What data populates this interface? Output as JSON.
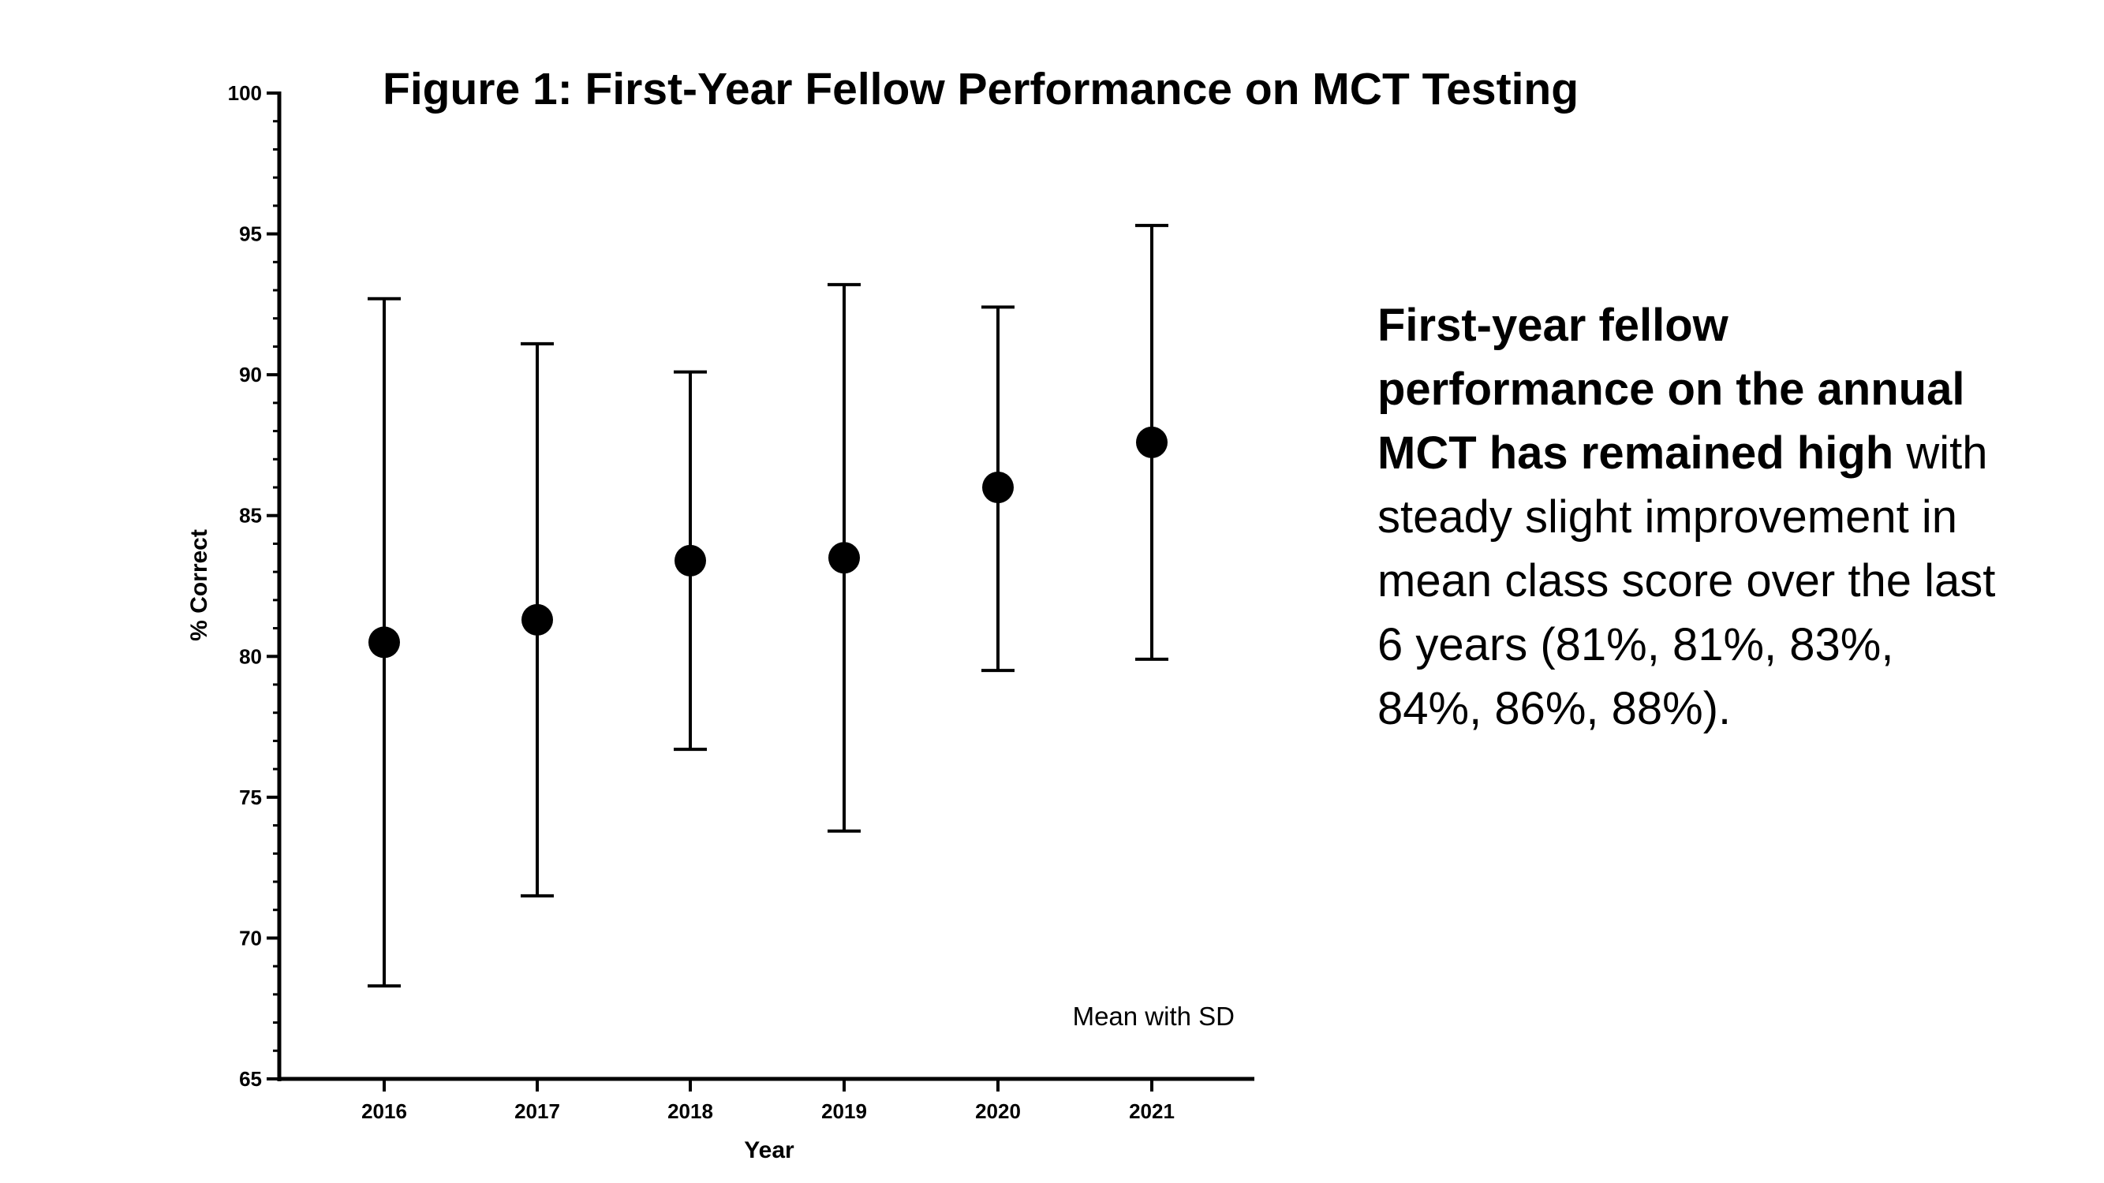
{
  "chart_data": {
    "type": "scatter",
    "title": "Figure 1:  First-Year Fellow Performance on MCT Testing",
    "xlabel": "Year",
    "ylabel": "% Correct",
    "categories": [
      "2016",
      "2017",
      "2018",
      "2019",
      "2020",
      "2021"
    ],
    "series": [
      {
        "mean": [
          80.5,
          81.3,
          83.4,
          83.5,
          86.0,
          87.6
        ],
        "sd_low": [
          68.3,
          71.5,
          76.7,
          73.8,
          79.5,
          79.9
        ],
        "sd_high": [
          92.7,
          91.1,
          90.1,
          93.2,
          92.4,
          95.3
        ]
      }
    ],
    "ylim": [
      65,
      100
    ],
    "y_ticks": [
      65,
      70,
      75,
      80,
      85,
      90,
      95,
      100
    ],
    "y_minor_step": 1,
    "annotation": "Mean with SD",
    "grid": false,
    "legend": "none"
  },
  "side_text": {
    "bold": "First-year fellow performance on the annual MCT has remained high",
    "normal": " with steady slight improvement in mean class score over the last 6 years (81%, 81%, 83%, 84%, 86%, 88%)."
  },
  "colors": {
    "ink": "#000000",
    "background": "#ffffff"
  }
}
